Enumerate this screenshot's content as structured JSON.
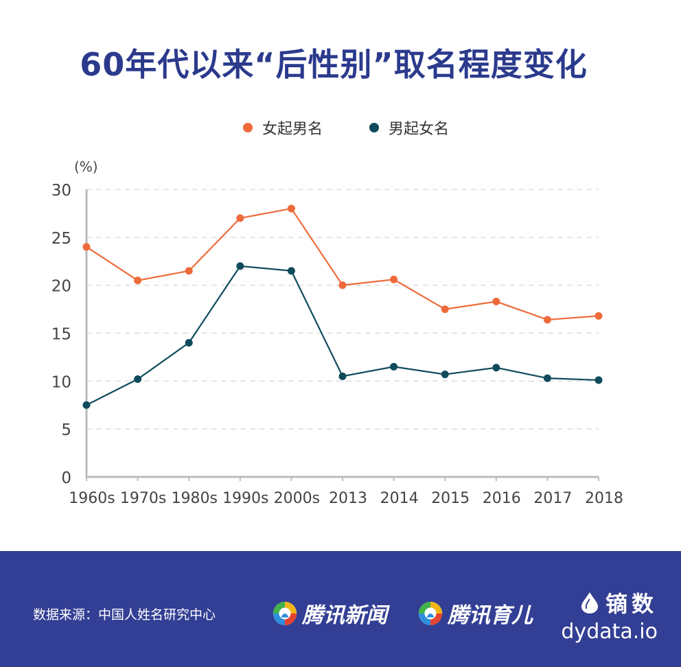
{
  "title": "60年代以来“后性别”取名程度变化",
  "legend": {
    "items": [
      {
        "label": "女起男名",
        "color": "#ee6a3a"
      },
      {
        "label": "男起女名",
        "color": "#0f4b5c"
      }
    ]
  },
  "chart_data": {
    "type": "line",
    "title": "60年代以来“后性别”取名程度变化",
    "ylabel": "(%)",
    "xlabel": "",
    "ylim": [
      0,
      30
    ],
    "yticks": [
      0,
      5,
      10,
      15,
      20,
      25,
      30
    ],
    "grid": true,
    "legend_position": "top",
    "categories": [
      "1960s",
      "1970s",
      "1980s",
      "1990s",
      "2000s",
      "2013",
      "2014",
      "2015",
      "2016",
      "2017",
      "2018"
    ],
    "series": [
      {
        "name": "女起男名",
        "color": "#ee6a3a",
        "values": [
          24,
          20.5,
          21.5,
          27,
          28,
          20,
          20.6,
          17.5,
          18.3,
          16.4,
          16.8
        ]
      },
      {
        "name": "男起女名",
        "color": "#0f4b5c",
        "values": [
          7.5,
          10.2,
          14,
          22,
          21.5,
          10.5,
          11.5,
          10.7,
          11.4,
          10.3,
          10.1
        ]
      }
    ]
  },
  "footer": {
    "source": "数据来源：中国人姓名研究中心",
    "partners": [
      "腾讯新闻",
      "腾讯育儿"
    ],
    "brand_cn": "镝数",
    "brand_en": "dydata.io"
  },
  "colors": {
    "title": "#2b3a8c",
    "footer_bg": "#333f94",
    "axis": "#bbbbbb",
    "grid": "#dddddd"
  }
}
